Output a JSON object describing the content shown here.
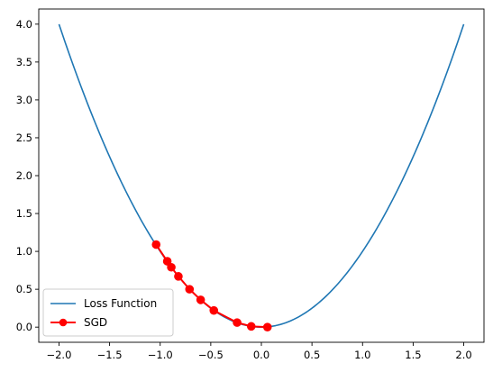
{
  "chart_data": {
    "type": "line",
    "title": "",
    "xlabel": "",
    "ylabel": "",
    "xlim": [
      -2.2,
      2.2
    ],
    "ylim": [
      -0.2,
      4.2
    ],
    "xticks": [
      -2.0,
      -1.5,
      -1.0,
      -0.5,
      0.0,
      0.5,
      1.0,
      1.5,
      2.0
    ],
    "xtick_labels": [
      "−2.0",
      "−1.5",
      "−1.0",
      "−0.5",
      "0.0",
      "0.5",
      "1.0",
      "1.5",
      "2.0"
    ],
    "yticks": [
      0.0,
      0.5,
      1.0,
      1.5,
      2.0,
      2.5,
      3.0,
      3.5,
      4.0
    ],
    "ytick_labels": [
      "0.0",
      "0.5",
      "1.0",
      "1.5",
      "2.0",
      "2.5",
      "3.0",
      "3.5",
      "4.0"
    ],
    "grid": false,
    "legend_position": "lower left",
    "series": [
      {
        "name": "Loss Function",
        "color": "#1f77b4",
        "marker": "none",
        "function": "x^2",
        "x_range": [
          -2.0,
          2.0
        ]
      },
      {
        "name": "SGD",
        "color": "#ff0000",
        "marker": "circle",
        "x": [
          -1.04,
          -0.93,
          -0.89,
          -0.82,
          -0.71,
          -0.6,
          -0.47,
          -0.24,
          -0.1,
          0.06
        ],
        "y": [
          1.09,
          0.87,
          0.79,
          0.67,
          0.5,
          0.36,
          0.22,
          0.06,
          0.01,
          0.0
        ]
      }
    ]
  }
}
